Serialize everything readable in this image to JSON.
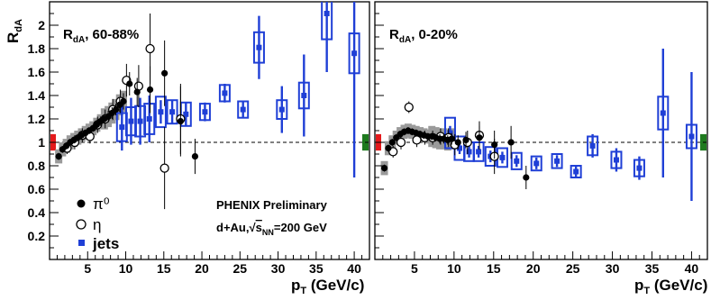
{
  "chart_data": [
    {
      "type": "scatter",
      "panel_label": "R_dA, 60-88%",
      "ylabel": "R_dA",
      "xlabel": "p_T (GeV/c)",
      "xlim": [
        0,
        42
      ],
      "ylim": [
        0,
        2.2
      ],
      "xticks": [
        5,
        10,
        15,
        20,
        25,
        30,
        35,
        40
      ],
      "yticks": [
        0.2,
        0.4,
        0.6,
        0.8,
        1,
        1.2,
        1.4,
        1.6,
        1.8,
        2
      ],
      "reference_line": 1.0,
      "global_uncertainty_colors": [
        "#e41a1c",
        "#1e7a1e"
      ],
      "annotation": {
        "line1": "PHENIX Preliminary",
        "line2_prefix": "d+Au,",
        "line2_sqrt": "s",
        "line2_sub": "NN",
        "line2_suffix": "=200 GeV"
      },
      "legend": [
        {
          "name": "π⁰",
          "symbol": "filled-circle"
        },
        {
          "name": "η",
          "symbol": "open-circle"
        },
        {
          "name": "jets",
          "symbol": "blue-square"
        }
      ],
      "series": [
        {
          "name": "π⁰",
          "color": "#000000",
          "points": [
            {
              "x": 1.2,
              "y": 0.88,
              "err": 0.03
            },
            {
              "x": 1.7,
              "y": 0.94,
              "err": 0.03
            },
            {
              "x": 2.2,
              "y": 0.97,
              "err": 0.03
            },
            {
              "x": 2.7,
              "y": 1.0,
              "err": 0.03
            },
            {
              "x": 3.2,
              "y": 1.02,
              "err": 0.03
            },
            {
              "x": 3.7,
              "y": 1.04,
              "err": 0.03
            },
            {
              "x": 4.2,
              "y": 1.06,
              "err": 0.03
            },
            {
              "x": 4.7,
              "y": 1.08,
              "err": 0.03
            },
            {
              "x": 5.2,
              "y": 1.1,
              "err": 0.03
            },
            {
              "x": 5.7,
              "y": 1.12,
              "err": 0.03
            },
            {
              "x": 6.2,
              "y": 1.15,
              "err": 0.04
            },
            {
              "x": 6.7,
              "y": 1.18,
              "err": 0.04
            },
            {
              "x": 7.2,
              "y": 1.2,
              "err": 0.04
            },
            {
              "x": 7.7,
              "y": 1.22,
              "err": 0.05
            },
            {
              "x": 8.2,
              "y": 1.25,
              "err": 0.05
            },
            {
              "x": 8.7,
              "y": 1.28,
              "err": 0.05
            },
            {
              "x": 9.2,
              "y": 1.32,
              "err": 0.06
            },
            {
              "x": 9.7,
              "y": 1.35,
              "err": 0.07
            },
            {
              "x": 10.5,
              "y": 1.5,
              "err": 0.1
            },
            {
              "x": 11.5,
              "y": 1.43,
              "err": 0.12
            },
            {
              "x": 13.2,
              "y": 1.45,
              "err": 0.2
            },
            {
              "x": 15.1,
              "y": 1.59,
              "err": 0.28
            },
            {
              "x": 17.2,
              "y": 1.18,
              "err": 0.3
            },
            {
              "x": 19.1,
              "y": 0.88,
              "err": 0.15
            }
          ]
        },
        {
          "name": "η",
          "color": "#000000",
          "points": [
            {
              "x": 2.3,
              "y": 0.95,
              "err": 0.05
            },
            {
              "x": 3.3,
              "y": 1.0,
              "err": 0.06
            },
            {
              "x": 4.3,
              "y": 1.06,
              "err": 0.06
            },
            {
              "x": 5.3,
              "y": 1.05,
              "err": 0.06
            },
            {
              "x": 6.3,
              "y": 1.15,
              "err": 0.07
            },
            {
              "x": 7.3,
              "y": 1.2,
              "err": 0.08
            },
            {
              "x": 8.3,
              "y": 1.28,
              "err": 0.09
            },
            {
              "x": 9.3,
              "y": 1.35,
              "err": 0.1
            },
            {
              "x": 10.1,
              "y": 1.53,
              "err": 0.14
            },
            {
              "x": 11.7,
              "y": 1.48,
              "err": 0.18
            },
            {
              "x": 13.2,
              "y": 1.8,
              "err": 0.3
            },
            {
              "x": 15.1,
              "y": 0.78,
              "err": 0.35
            },
            {
              "x": 17.2,
              "y": 1.2,
              "err": 0.3
            }
          ]
        },
        {
          "name": "jets",
          "color": "#1f3fd6",
          "points": [
            {
              "x": 9.5,
              "y": 1.13,
              "err": 0.2,
              "sys": 0.12
            },
            {
              "x": 10.7,
              "y": 1.18,
              "err": 0.2,
              "sys": 0.12
            },
            {
              "x": 11.9,
              "y": 1.18,
              "err": 0.2,
              "sys": 0.13
            },
            {
              "x": 13.1,
              "y": 1.2,
              "err": 0.2,
              "sys": 0.13
            },
            {
              "x": 14.6,
              "y": 1.26,
              "err": 0.1,
              "sys": 0.13
            },
            {
              "x": 16.1,
              "y": 1.26,
              "err": 0.1,
              "sys": 0.1
            },
            {
              "x": 17.9,
              "y": 1.24,
              "err": 0.1,
              "sys": 0.1
            },
            {
              "x": 20.4,
              "y": 1.26,
              "err": 0.08,
              "sys": 0.07
            },
            {
              "x": 23.0,
              "y": 1.42,
              "err": 0.08,
              "sys": 0.07
            },
            {
              "x": 25.4,
              "y": 1.28,
              "err": 0.07,
              "sys": 0.07
            },
            {
              "x": 27.5,
              "y": 1.81,
              "err": 0.27,
              "sys": 0.13
            },
            {
              "x": 30.5,
              "y": 1.28,
              "err": 0.2,
              "sys": 0.08
            },
            {
              "x": 33.4,
              "y": 1.4,
              "err": 0.35,
              "sys": 0.11
            },
            {
              "x": 36.4,
              "y": 2.1,
              "err": 0.5,
              "sys": 0.22
            },
            {
              "x": 40.0,
              "y": 1.76,
              "err": 1.06,
              "sys": 0.17
            }
          ]
        }
      ]
    },
    {
      "type": "scatter",
      "panel_label": "R_dA, 0-20%",
      "xlabel": "p_T (GeV/c)",
      "xlim": [
        0,
        42
      ],
      "ylim": [
        0,
        2.2
      ],
      "xticks": [
        5,
        10,
        15,
        20,
        25,
        30,
        35,
        40
      ],
      "reference_line": 1.0,
      "global_uncertainty_colors": [
        "#e41a1c",
        "#1e7a1e"
      ],
      "series": [
        {
          "name": "π⁰",
          "color": "#000000",
          "points": [
            {
              "x": 1.2,
              "y": 0.78,
              "err": 0.03
            },
            {
              "x": 1.7,
              "y": 0.95,
              "err": 0.03
            },
            {
              "x": 2.2,
              "y": 1.0,
              "err": 0.03
            },
            {
              "x": 2.7,
              "y": 1.04,
              "err": 0.03
            },
            {
              "x": 3.2,
              "y": 1.07,
              "err": 0.03
            },
            {
              "x": 3.7,
              "y": 1.09,
              "err": 0.03
            },
            {
              "x": 4.2,
              "y": 1.1,
              "err": 0.03
            },
            {
              "x": 4.7,
              "y": 1.09,
              "err": 0.03
            },
            {
              "x": 5.2,
              "y": 1.08,
              "err": 0.03
            },
            {
              "x": 5.7,
              "y": 1.07,
              "err": 0.03
            },
            {
              "x": 6.2,
              "y": 1.06,
              "err": 0.03
            },
            {
              "x": 6.7,
              "y": 1.05,
              "err": 0.03
            },
            {
              "x": 7.2,
              "y": 1.05,
              "err": 0.03
            },
            {
              "x": 7.7,
              "y": 1.04,
              "err": 0.03
            },
            {
              "x": 8.2,
              "y": 1.03,
              "err": 0.04
            },
            {
              "x": 8.7,
              "y": 1.03,
              "err": 0.04
            },
            {
              "x": 9.2,
              "y": 1.02,
              "err": 0.04
            },
            {
              "x": 9.7,
              "y": 1.03,
              "err": 0.05
            },
            {
              "x": 10.5,
              "y": 1.0,
              "err": 0.06
            },
            {
              "x": 11.5,
              "y": 1.02,
              "err": 0.07
            },
            {
              "x": 13.2,
              "y": 1.04,
              "err": 0.1
            },
            {
              "x": 15.1,
              "y": 0.98,
              "err": 0.12
            },
            {
              "x": 17.2,
              "y": 1.0,
              "err": 0.14
            },
            {
              "x": 19.1,
              "y": 0.7,
              "err": 0.1
            }
          ]
        },
        {
          "name": "η",
          "color": "#000000",
          "points": [
            {
              "x": 2.3,
              "y": 0.92,
              "err": 0.05
            },
            {
              "x": 3.3,
              "y": 1.0,
              "err": 0.06
            },
            {
              "x": 4.3,
              "y": 1.3,
              "err": 0.05
            },
            {
              "x": 5.3,
              "y": 1.02,
              "err": 0.06
            },
            {
              "x": 6.3,
              "y": 1.04,
              "err": 0.06
            },
            {
              "x": 7.3,
              "y": 1.04,
              "err": 0.06
            },
            {
              "x": 8.3,
              "y": 1.05,
              "err": 0.07
            },
            {
              "x": 9.3,
              "y": 1.04,
              "err": 0.08
            },
            {
              "x": 10.1,
              "y": 0.98,
              "err": 0.09
            },
            {
              "x": 11.7,
              "y": 1.0,
              "err": 0.1
            },
            {
              "x": 13.2,
              "y": 1.06,
              "err": 0.12
            },
            {
              "x": 15.1,
              "y": 0.88,
              "err": 0.15
            }
          ]
        },
        {
          "name": "jets",
          "color": "#1f3fd6",
          "points": [
            {
              "x": 9.5,
              "y": 1.08,
              "err": 0.06,
              "sys": 0.13
            },
            {
              "x": 10.7,
              "y": 0.95,
              "err": 0.05,
              "sys": 0.1
            },
            {
              "x": 11.9,
              "y": 0.92,
              "err": 0.05,
              "sys": 0.08
            },
            {
              "x": 13.1,
              "y": 0.92,
              "err": 0.05,
              "sys": 0.08
            },
            {
              "x": 14.6,
              "y": 0.88,
              "err": 0.05,
              "sys": 0.08
            },
            {
              "x": 16.1,
              "y": 0.87,
              "err": 0.05,
              "sys": 0.08
            },
            {
              "x": 17.9,
              "y": 0.84,
              "err": 0.05,
              "sys": 0.07
            },
            {
              "x": 20.4,
              "y": 0.82,
              "err": 0.05,
              "sys": 0.06
            },
            {
              "x": 23.0,
              "y": 0.84,
              "err": 0.05,
              "sys": 0.06
            },
            {
              "x": 25.4,
              "y": 0.75,
              "err": 0.05,
              "sys": 0.05
            },
            {
              "x": 27.5,
              "y": 0.97,
              "err": 0.1,
              "sys": 0.08
            },
            {
              "x": 30.5,
              "y": 0.85,
              "err": 0.1,
              "sys": 0.07
            },
            {
              "x": 33.4,
              "y": 0.78,
              "err": 0.1,
              "sys": 0.07
            },
            {
              "x": 36.4,
              "y": 1.25,
              "err": 0.55,
              "sys": 0.14
            },
            {
              "x": 40.0,
              "y": 1.05,
              "err": 0.55,
              "sys": 0.1
            }
          ]
        }
      ]
    }
  ]
}
